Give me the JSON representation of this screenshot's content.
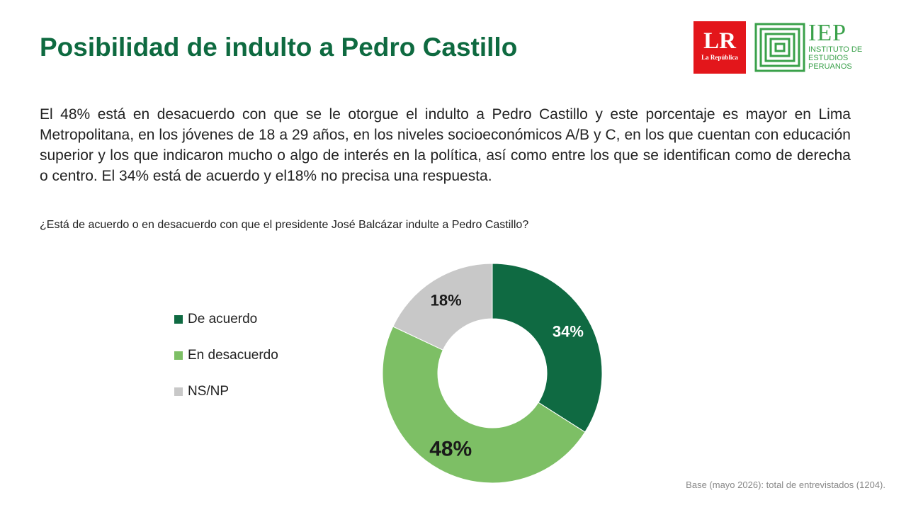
{
  "header": {
    "title": "Posibilidad de indulto a Pedro Castillo",
    "logo_lr": {
      "main": "LR",
      "sub": "La República"
    },
    "logo_iep": {
      "big": "IEP",
      "lines": [
        "INSTITUTO DE",
        "ESTUDIOS",
        "PERUANOS"
      ]
    }
  },
  "paragraph": "El 48% está en desacuerdo con que se le otorgue el indulto a Pedro Castillo y este porcentaje es mayor en Lima Metropolitana, en los jóvenes de 18 a 29 años, en los niveles socioeconómicos A/B y C, en los que cuentan con educación superior y los que indicaron mucho o algo de interés en la política, así como entre los que se identifican como de derecha o centro. El 34% está de acuerdo y el18% no precisa una respuesta.",
  "question": "¿Está de acuerdo o en desacuerdo con que el presidente José Balcázar indulte a Pedro Castillo?",
  "footnote": "Base (mayo 2026): total de entrevistados (1204).",
  "colors": {
    "brand_green": "#0e6a40",
    "light_green": "#7dbf65",
    "gray": "#c8c8c8",
    "lr_red": "#e3161b",
    "iep_green": "#3aa14a"
  },
  "chart_data": {
    "type": "pie",
    "variant": "donut",
    "title": "",
    "categories": [
      "De acuerdo",
      "En desacuerdo",
      "NS/NP"
    ],
    "values": [
      34,
      48,
      18
    ],
    "labels": [
      "34%",
      "48%",
      "18%"
    ],
    "colors": [
      "#0f6a42",
      "#7dbf65",
      "#c8c8c8"
    ],
    "label_colors": [
      "#ffffff",
      "#1a1a1a",
      "#1a1a1a"
    ],
    "legend_placement": "left"
  }
}
